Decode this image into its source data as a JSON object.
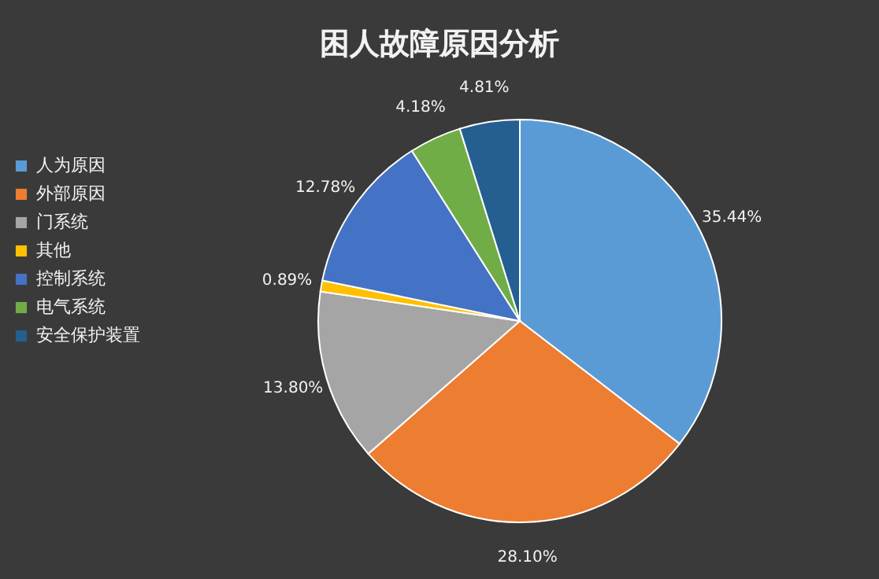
{
  "chart_data": {
    "type": "pie",
    "title": "困人故障原因分析",
    "categories": [
      "人为原因",
      "外部原因",
      "门系统",
      "其他",
      "控制系统",
      "电气系统",
      "安全保护装置"
    ],
    "values": [
      35.44,
      28.1,
      13.8,
      0.89,
      12.78,
      4.18,
      4.81
    ],
    "value_labels": [
      "35.44%",
      "28.10%",
      "13.80%",
      "0.89%",
      "12.78%",
      "4.18%",
      "4.81%"
    ],
    "colors": [
      "#5b9bd5",
      "#ed7d31",
      "#a5a5a5",
      "#ffc000",
      "#4472c4",
      "#70ad47",
      "#255e91"
    ],
    "legend": "left"
  }
}
